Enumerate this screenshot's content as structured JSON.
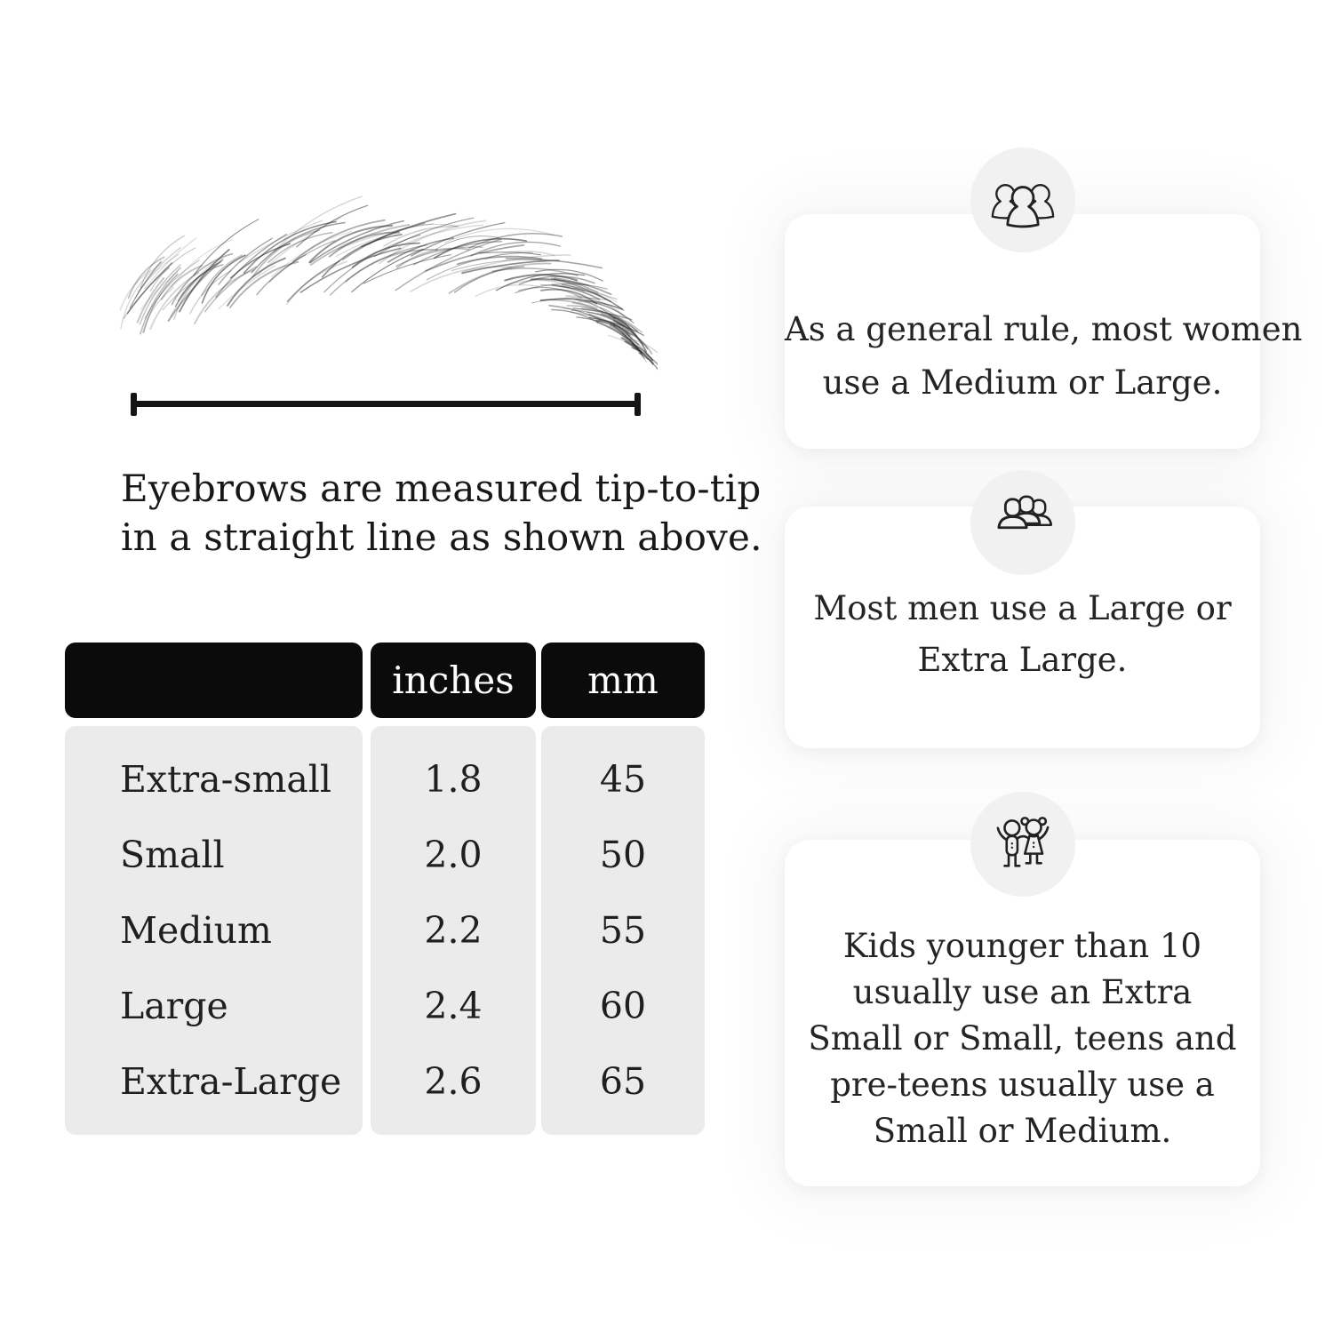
{
  "page": {
    "background": "#ffffff"
  },
  "eyebrow_section": {
    "caption_lines": [
      "Eyebrows are measured tip-to-tip",
      "in a straight line as shown above."
    ]
  },
  "size_table": {
    "header": {
      "size_label": "",
      "inches_label": "inches",
      "mm_label": "mm"
    },
    "rows": [
      {
        "label": "Extra-small",
        "inches": "1.8",
        "mm": "45"
      },
      {
        "label": "Small",
        "inches": "2.0",
        "mm": "50"
      },
      {
        "label": "Medium",
        "inches": "2.2",
        "mm": "55"
      },
      {
        "label": "Large",
        "inches": "2.4",
        "mm": "60"
      },
      {
        "label": "Extra-Large",
        "inches": "2.6",
        "mm": "65"
      }
    ],
    "colors": {
      "header_bg": "#0b0b0b",
      "header_text": "#ffffff",
      "body_bg": "#ebebeb",
      "body_text": "#1f1f1f"
    }
  },
  "tips": [
    {
      "icon": "women-group-icon",
      "lines": [
        "As a general rule, most women",
        "use a Medium or Large."
      ]
    },
    {
      "icon": "men-group-icon",
      "lines": [
        "Most men use a Large or",
        "Extra Large."
      ]
    },
    {
      "icon": "kids-icon",
      "lines": [
        "Kids younger than 10",
        "usually use an Extra",
        "Small or Small, teens and",
        "pre-teens usually use a",
        "Small or Medium."
      ]
    }
  ]
}
